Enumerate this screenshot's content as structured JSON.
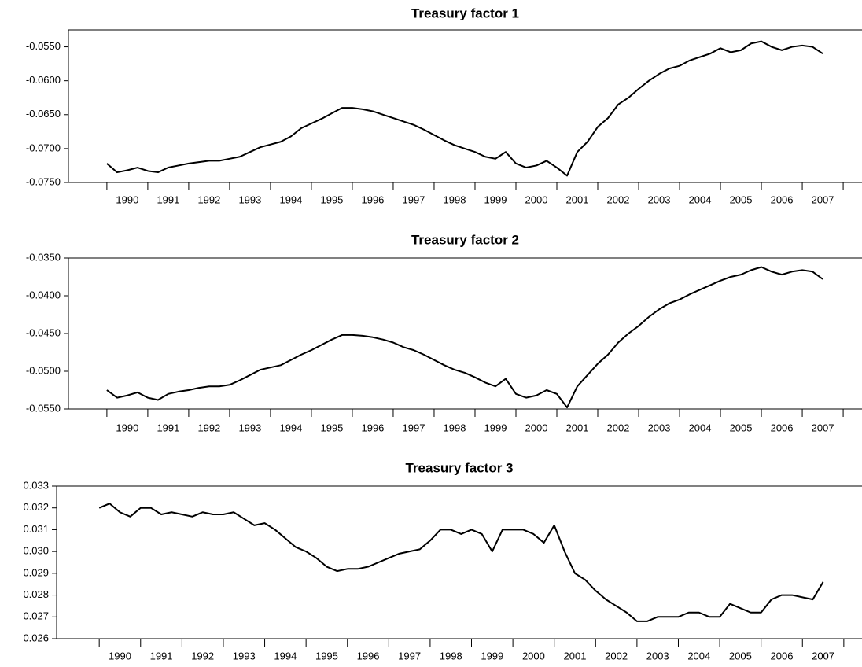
{
  "chart_data": [
    {
      "type": "line",
      "title": "Treasury factor 1",
      "color": "#000000",
      "x": [
        1990,
        1990.25,
        1990.5,
        1990.75,
        1991,
        1991.25,
        1991.5,
        1991.75,
        1992,
        1992.25,
        1992.5,
        1992.75,
        1993,
        1993.25,
        1993.5,
        1993.75,
        1994,
        1994.25,
        1994.5,
        1994.75,
        1995,
        1995.25,
        1995.5,
        1995.75,
        1996,
        1996.25,
        1996.5,
        1996.75,
        1997,
        1997.25,
        1997.5,
        1997.75,
        1998,
        1998.25,
        1998.5,
        1998.75,
        1999,
        1999.25,
        1999.5,
        1999.75,
        2000,
        2000.25,
        2000.5,
        2000.75,
        2001,
        2001.25,
        2001.5,
        2001.75,
        2002,
        2002.25,
        2002.5,
        2002.75,
        2003,
        2003.25,
        2003.5,
        2003.75,
        2004,
        2004.25,
        2004.5,
        2004.75,
        2005,
        2005.25,
        2005.5,
        2005.75,
        2006,
        2006.25,
        2006.5,
        2006.75,
        2007,
        2007.25,
        2007.5
      ],
      "values": [
        -0.0722,
        -0.0735,
        -0.0732,
        -0.0728,
        -0.0733,
        -0.0735,
        -0.0728,
        -0.0725,
        -0.0722,
        -0.072,
        -0.0718,
        -0.0718,
        -0.0715,
        -0.0712,
        -0.0705,
        -0.0698,
        -0.0694,
        -0.069,
        -0.0682,
        -0.067,
        -0.0663,
        -0.0656,
        -0.0648,
        -0.064,
        -0.064,
        -0.0642,
        -0.0645,
        -0.065,
        -0.0655,
        -0.066,
        -0.0665,
        -0.0672,
        -0.068,
        -0.0688,
        -0.0695,
        -0.07,
        -0.0705,
        -0.0712,
        -0.0715,
        -0.0705,
        -0.0722,
        -0.0728,
        -0.0725,
        -0.0718,
        -0.0728,
        -0.074,
        -0.0705,
        -0.069,
        -0.0668,
        -0.0655,
        -0.0635,
        -0.0625,
        -0.0612,
        -0.06,
        -0.059,
        -0.0582,
        -0.0578,
        -0.057,
        -0.0565,
        -0.056,
        -0.0552,
        -0.0558,
        -0.0555,
        -0.0545,
        -0.0542,
        -0.055,
        -0.0555,
        -0.055,
        -0.0548,
        -0.055,
        -0.056
      ],
      "xlim": [
        1989.06,
        2008.46
      ],
      "ylim": [
        -0.075,
        -0.0525
      ],
      "yticks": [
        {
          "value": -0.075,
          "label": "-0.0750"
        },
        {
          "value": -0.07,
          "label": "-0.0700"
        },
        {
          "value": -0.065,
          "label": "-0.0650"
        },
        {
          "value": -0.06,
          "label": "-0.0600"
        },
        {
          "value": -0.055,
          "label": "-0.0550"
        }
      ],
      "year_labels": [
        1990,
        1991,
        1992,
        1993,
        1994,
        1995,
        1996,
        1997,
        1998,
        1999,
        2000,
        2001,
        2002,
        2003,
        2004,
        2005,
        2006,
        2007
      ]
    },
    {
      "type": "line",
      "title": "Treasury factor 2",
      "color": "#000000",
      "x": [
        1990,
        1990.25,
        1990.5,
        1990.75,
        1991,
        1991.25,
        1991.5,
        1991.75,
        1992,
        1992.25,
        1992.5,
        1992.75,
        1993,
        1993.25,
        1993.5,
        1993.75,
        1994,
        1994.25,
        1994.5,
        1994.75,
        1995,
        1995.25,
        1995.5,
        1995.75,
        1996,
        1996.25,
        1996.5,
        1996.75,
        1997,
        1997.25,
        1997.5,
        1997.75,
        1998,
        1998.25,
        1998.5,
        1998.75,
        1999,
        1999.25,
        1999.5,
        1999.75,
        2000,
        2000.25,
        2000.5,
        2000.75,
        2001,
        2001.25,
        2001.5,
        2001.75,
        2002,
        2002.25,
        2002.5,
        2002.75,
        2003,
        2003.25,
        2003.5,
        2003.75,
        2004,
        2004.25,
        2004.5,
        2004.75,
        2005,
        2005.25,
        2005.5,
        2005.75,
        2006,
        2006.25,
        2006.5,
        2006.75,
        2007,
        2007.25,
        2007.5
      ],
      "values": [
        -0.0525,
        -0.0535,
        -0.0532,
        -0.0528,
        -0.0535,
        -0.0538,
        -0.053,
        -0.0527,
        -0.0525,
        -0.0522,
        -0.052,
        -0.052,
        -0.0518,
        -0.0512,
        -0.0505,
        -0.0498,
        -0.0495,
        -0.0492,
        -0.0485,
        -0.0478,
        -0.0472,
        -0.0465,
        -0.0458,
        -0.0452,
        -0.0452,
        -0.0453,
        -0.0455,
        -0.0458,
        -0.0462,
        -0.0468,
        -0.0472,
        -0.0478,
        -0.0485,
        -0.0492,
        -0.0498,
        -0.0502,
        -0.0508,
        -0.0515,
        -0.052,
        -0.051,
        -0.053,
        -0.0535,
        -0.0532,
        -0.0525,
        -0.053,
        -0.0548,
        -0.052,
        -0.0505,
        -0.049,
        -0.0478,
        -0.0462,
        -0.045,
        -0.044,
        -0.0428,
        -0.0418,
        -0.041,
        -0.0405,
        -0.0398,
        -0.0392,
        -0.0386,
        -0.038,
        -0.0375,
        -0.0372,
        -0.0366,
        -0.0362,
        -0.0368,
        -0.0372,
        -0.0368,
        -0.0366,
        -0.0368,
        -0.0378
      ],
      "xlim": [
        1989.06,
        2008.46
      ],
      "ylim": [
        -0.055,
        -0.035
      ],
      "yticks": [
        {
          "value": -0.055,
          "label": "-0.0550"
        },
        {
          "value": -0.05,
          "label": "-0.0500"
        },
        {
          "value": -0.045,
          "label": "-0.0450"
        },
        {
          "value": -0.04,
          "label": "-0.0400"
        },
        {
          "value": -0.035,
          "label": "-0.0350"
        }
      ],
      "year_labels": [
        1990,
        1991,
        1992,
        1993,
        1994,
        1995,
        1996,
        1997,
        1998,
        1999,
        2000,
        2001,
        2002,
        2003,
        2004,
        2005,
        2006,
        2007
      ]
    },
    {
      "type": "line",
      "title": "Treasury factor 3",
      "color": "#000000",
      "x": [
        1990,
        1990.25,
        1990.5,
        1990.75,
        1991,
        1991.25,
        1991.5,
        1991.75,
        1992,
        1992.25,
        1992.5,
        1992.75,
        1993,
        1993.25,
        1993.5,
        1993.75,
        1994,
        1994.25,
        1994.5,
        1994.75,
        1995,
        1995.25,
        1995.5,
        1995.75,
        1996,
        1996.25,
        1996.5,
        1996.75,
        1997,
        1997.25,
        1997.5,
        1997.75,
        1998,
        1998.25,
        1998.5,
        1998.75,
        1999,
        1999.25,
        1999.5,
        1999.75,
        2000,
        2000.25,
        2000.5,
        2000.75,
        2001,
        2001.25,
        2001.5,
        2001.75,
        2002,
        2002.25,
        2002.5,
        2002.75,
        2003,
        2003.25,
        2003.5,
        2003.75,
        2004,
        2004.25,
        2004.5,
        2004.75,
        2005,
        2005.25,
        2005.5,
        2005.75,
        2006,
        2006.25,
        2006.5,
        2006.75,
        2007,
        2007.25,
        2007.5
      ],
      "values": [
        0.032,
        0.0322,
        0.0318,
        0.0316,
        0.032,
        0.032,
        0.0317,
        0.0318,
        0.0317,
        0.0316,
        0.0318,
        0.0317,
        0.0317,
        0.0318,
        0.0315,
        0.0312,
        0.0313,
        0.031,
        0.0306,
        0.0302,
        0.03,
        0.0297,
        0.0293,
        0.0291,
        0.0292,
        0.0292,
        0.0293,
        0.0295,
        0.0297,
        0.0299,
        0.03,
        0.0301,
        0.0305,
        0.031,
        0.031,
        0.0308,
        0.031,
        0.0308,
        0.03,
        0.031,
        0.031,
        0.031,
        0.0308,
        0.0304,
        0.0312,
        0.03,
        0.029,
        0.0287,
        0.0282,
        0.0278,
        0.0275,
        0.0272,
        0.0268,
        0.0268,
        0.027,
        0.027,
        0.027,
        0.0272,
        0.0272,
        0.027,
        0.027,
        0.0276,
        0.0274,
        0.0272,
        0.0272,
        0.0278,
        0.028,
        0.028,
        0.0279,
        0.0278,
        0.0286
      ],
      "xlim": [
        1988.97,
        2008.44
      ],
      "ylim": [
        0.026,
        0.033
      ],
      "yticks": [
        0.026,
        0.027,
        0.028,
        0.029,
        {
          "value": 0.03,
          "label": "0.030"
        },
        0.031,
        0.032,
        0.033
      ],
      "year_labels": [
        1990,
        1991,
        1992,
        1993,
        1994,
        1995,
        1996,
        1997,
        1998,
        1999,
        2000,
        2001,
        2002,
        2003,
        2004,
        2005,
        2006,
        2007
      ]
    }
  ]
}
